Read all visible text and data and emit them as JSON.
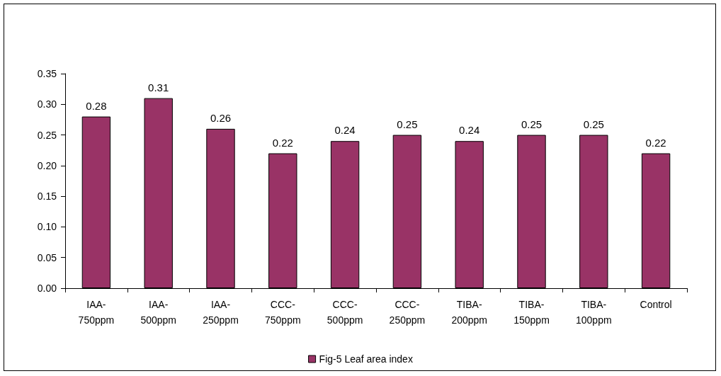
{
  "chart_data": {
    "type": "bar",
    "categories": [
      "IAA-750ppm",
      "IAA-500ppm",
      "IAA-250ppm",
      "CCC-750ppm",
      "CCC-500ppm",
      "CCC-250ppm",
      "TIBA-200ppm",
      "TIBA-150ppm",
      "TIBA-100ppm",
      "Control"
    ],
    "series": [
      {
        "name": "Fig-5 Leaf area index",
        "color": "#993366",
        "values": [
          0.28,
          0.31,
          0.26,
          0.22,
          0.24,
          0.25,
          0.24,
          0.25,
          0.25,
          0.22
        ]
      }
    ],
    "ylim": [
      0,
      0.35
    ],
    "yticks": [
      {
        "value": 0,
        "label": "0.00"
      },
      {
        "value": 0.05,
        "label": "0.05"
      },
      {
        "value": 0.1,
        "label": "0.10"
      },
      {
        "value": 0.15,
        "label": "0.15"
      },
      {
        "value": 0.2,
        "label": "0.20"
      },
      {
        "value": 0.25,
        "label": "0.25"
      },
      {
        "value": 0.3,
        "label": "0.30"
      },
      {
        "value": 0.35,
        "label": "0.35"
      }
    ],
    "data_labels": true,
    "grid": false,
    "legend": "bottom"
  }
}
